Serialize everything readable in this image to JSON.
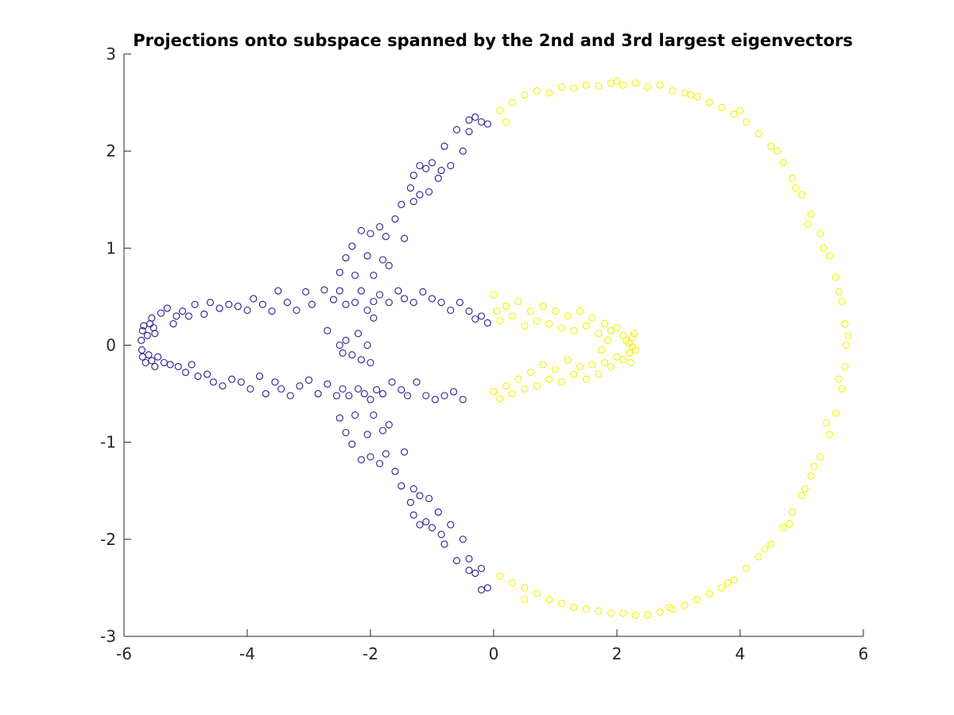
{
  "chart_data": {
    "type": "scatter",
    "title": "Projections onto subspace spanned by the 2nd and 3rd largest eigenvectors",
    "xlabel": "",
    "ylabel": "",
    "xlim": [
      -6,
      6
    ],
    "ylim": [
      -3,
      3
    ],
    "xticks": [
      -6,
      -4,
      -2,
      0,
      2,
      4,
      6
    ],
    "yticks": [
      -3,
      -2,
      -1,
      0,
      1,
      2,
      3
    ],
    "xtick_labels": [
      "-6",
      "-4",
      "-2",
      "0",
      "2",
      "4",
      "6"
    ],
    "ytick_labels": [
      "-3",
      "-2",
      "-1",
      "0",
      "1",
      "2",
      "3"
    ],
    "grid": false,
    "marker": "open-circle",
    "series": [
      {
        "color": "#2b1d8c",
        "points": [
          [
            -5.7,
            0.15
          ],
          [
            -5.72,
            0.05
          ],
          [
            -5.71,
            -0.05
          ],
          [
            -5.7,
            -0.12
          ],
          [
            -5.68,
            0.2
          ],
          [
            -5.65,
            -0.18
          ],
          [
            -5.62,
            0.1
          ],
          [
            -5.6,
            -0.1
          ],
          [
            -5.58,
            0.22
          ],
          [
            -5.55,
            0.28
          ],
          [
            -5.55,
            -0.16
          ],
          [
            -5.52,
            0.18
          ],
          [
            -5.5,
            -0.22
          ],
          [
            -5.5,
            0.12
          ],
          [
            -5.45,
            -0.12
          ],
          [
            -5.4,
            0.33
          ],
          [
            -5.35,
            -0.18
          ],
          [
            -5.3,
            0.38
          ],
          [
            -5.25,
            -0.2
          ],
          [
            -5.2,
            0.22
          ],
          [
            -5.15,
            0.3
          ],
          [
            -5.12,
            -0.22
          ],
          [
            -5.05,
            0.35
          ],
          [
            -5.0,
            -0.28
          ],
          [
            -4.95,
            0.3
          ],
          [
            -4.9,
            -0.2
          ],
          [
            -4.85,
            0.42
          ],
          [
            -4.8,
            -0.32
          ],
          [
            -4.7,
            0.32
          ],
          [
            -4.65,
            -0.3
          ],
          [
            -4.6,
            0.44
          ],
          [
            -4.55,
            -0.38
          ],
          [
            -4.45,
            0.38
          ],
          [
            -4.4,
            -0.42
          ],
          [
            -4.3,
            0.42
          ],
          [
            -4.25,
            -0.35
          ],
          [
            -4.15,
            0.4
          ],
          [
            -4.1,
            -0.38
          ],
          [
            -4.0,
            0.36
          ],
          [
            -3.95,
            -0.45
          ],
          [
            -3.9,
            0.48
          ],
          [
            -3.8,
            -0.32
          ],
          [
            -3.75,
            0.42
          ],
          [
            -3.7,
            -0.5
          ],
          [
            -3.6,
            0.35
          ],
          [
            -3.55,
            -0.38
          ],
          [
            -3.5,
            0.56
          ],
          [
            -3.45,
            -0.45
          ],
          [
            -3.35,
            0.44
          ],
          [
            -3.3,
            -0.52
          ],
          [
            -3.2,
            0.36
          ],
          [
            -3.15,
            -0.42
          ],
          [
            -3.05,
            0.55
          ],
          [
            -3.0,
            -0.36
          ],
          [
            -2.95,
            0.42
          ],
          [
            -2.85,
            -0.5
          ],
          [
            -2.75,
            0.57
          ],
          [
            -2.7,
            -0.4
          ],
          [
            -2.6,
            0.47
          ],
          [
            -2.55,
            -0.52
          ],
          [
            -2.5,
            0.56
          ],
          [
            -2.45,
            -0.45
          ],
          [
            -2.4,
            0.42
          ],
          [
            -2.35,
            -0.52
          ],
          [
            -2.25,
            0.44
          ],
          [
            -2.2,
            -0.45
          ],
          [
            -2.15,
            0.56
          ],
          [
            -2.1,
            -0.5
          ],
          [
            -2.05,
            0.36
          ],
          [
            -2.0,
            -0.56
          ],
          [
            -1.95,
            0.45
          ],
          [
            -1.9,
            -0.46
          ],
          [
            -1.85,
            0.52
          ],
          [
            -1.8,
            -0.5
          ],
          [
            -1.7,
            0.44
          ],
          [
            -1.65,
            -0.38
          ],
          [
            -1.55,
            0.56
          ],
          [
            -1.5,
            -0.46
          ],
          [
            -1.45,
            0.48
          ],
          [
            -1.4,
            -0.52
          ],
          [
            -1.3,
            0.44
          ],
          [
            -1.25,
            -0.38
          ],
          [
            -1.15,
            0.55
          ],
          [
            -1.1,
            -0.52
          ],
          [
            -1.0,
            0.48
          ],
          [
            -0.95,
            -0.56
          ],
          [
            -0.85,
            0.44
          ],
          [
            -0.8,
            -0.52
          ],
          [
            -0.7,
            0.36
          ],
          [
            -0.65,
            -0.48
          ],
          [
            -0.55,
            0.44
          ],
          [
            -0.5,
            -0.56
          ],
          [
            -0.4,
            0.35
          ],
          [
            -0.3,
            0.27
          ],
          [
            -0.2,
            0.3
          ],
          [
            -0.1,
            0.23
          ],
          [
            -2.7,
            0.15
          ],
          [
            -2.5,
            0.0
          ],
          [
            -2.45,
            -0.08
          ],
          [
            -2.4,
            0.05
          ],
          [
            -2.3,
            -0.1
          ],
          [
            -2.2,
            0.12
          ],
          [
            -2.15,
            -0.15
          ],
          [
            -2.05,
            0.0
          ],
          [
            -2.0,
            -0.18
          ],
          [
            -1.95,
            0.28
          ],
          [
            -2.5,
            0.75
          ],
          [
            -2.4,
            0.9
          ],
          [
            -2.3,
            1.02
          ],
          [
            -2.25,
            0.72
          ],
          [
            -2.15,
            1.18
          ],
          [
            -2.05,
            0.92
          ],
          [
            -2.0,
            1.15
          ],
          [
            -1.95,
            0.72
          ],
          [
            -1.85,
            1.22
          ],
          [
            -1.8,
            0.88
          ],
          [
            -1.75,
            1.12
          ],
          [
            -1.7,
            0.82
          ],
          [
            -1.6,
            1.3
          ],
          [
            -1.5,
            1.45
          ],
          [
            -1.45,
            1.1
          ],
          [
            -1.35,
            1.62
          ],
          [
            -1.3,
            1.48
          ],
          [
            -1.2,
            1.55
          ],
          [
            -1.1,
            1.82
          ],
          [
            -1.05,
            1.58
          ],
          [
            -1.0,
            1.88
          ],
          [
            -0.9,
            1.72
          ],
          [
            -0.8,
            2.05
          ],
          [
            -0.7,
            1.85
          ],
          [
            -0.6,
            2.22
          ],
          [
            -0.5,
            2.0
          ],
          [
            -0.4,
            2.2
          ],
          [
            -0.3,
            2.35
          ],
          [
            -0.2,
            2.3
          ],
          [
            -0.1,
            2.28
          ],
          [
            -1.3,
            1.75
          ],
          [
            -1.2,
            1.85
          ],
          [
            -0.85,
            1.8
          ],
          [
            -0.4,
            2.32
          ],
          [
            -2.5,
            -0.75
          ],
          [
            -2.4,
            -0.9
          ],
          [
            -2.3,
            -1.02
          ],
          [
            -2.25,
            -0.72
          ],
          [
            -2.15,
            -1.18
          ],
          [
            -2.05,
            -0.92
          ],
          [
            -2.0,
            -1.15
          ],
          [
            -1.95,
            -0.72
          ],
          [
            -1.85,
            -1.22
          ],
          [
            -1.8,
            -0.88
          ],
          [
            -1.75,
            -1.12
          ],
          [
            -1.7,
            -0.82
          ],
          [
            -1.6,
            -1.3
          ],
          [
            -1.5,
            -1.45
          ],
          [
            -1.45,
            -1.1
          ],
          [
            -1.35,
            -1.62
          ],
          [
            -1.3,
            -1.48
          ],
          [
            -1.2,
            -1.55
          ],
          [
            -1.1,
            -1.82
          ],
          [
            -1.05,
            -1.58
          ],
          [
            -1.0,
            -1.88
          ],
          [
            -0.9,
            -1.72
          ],
          [
            -0.8,
            -2.05
          ],
          [
            -0.7,
            -1.85
          ],
          [
            -0.6,
            -2.22
          ],
          [
            -0.5,
            -2.0
          ],
          [
            -0.4,
            -2.2
          ],
          [
            -0.3,
            -2.35
          ],
          [
            -0.2,
            -2.3
          ],
          [
            -0.1,
            -2.5
          ],
          [
            -1.3,
            -1.75
          ],
          [
            -1.2,
            -1.85
          ],
          [
            -0.85,
            -1.95
          ],
          [
            -0.4,
            -2.32
          ],
          [
            -0.2,
            -2.52
          ]
        ]
      },
      {
        "color": "#f2f200",
        "points": [
          [
            0.0,
            0.52
          ],
          [
            0.05,
            0.35
          ],
          [
            0.1,
            0.25
          ],
          [
            0.2,
            0.4
          ],
          [
            0.3,
            0.3
          ],
          [
            0.4,
            0.45
          ],
          [
            0.5,
            0.2
          ],
          [
            0.6,
            0.35
          ],
          [
            0.7,
            0.25
          ],
          [
            0.8,
            0.4
          ],
          [
            0.9,
            0.22
          ],
          [
            1.0,
            0.35
          ],
          [
            1.1,
            0.18
          ],
          [
            1.2,
            0.3
          ],
          [
            1.3,
            0.15
          ],
          [
            1.4,
            0.35
          ],
          [
            1.5,
            0.2
          ],
          [
            1.6,
            0.28
          ],
          [
            1.7,
            0.12
          ],
          [
            1.8,
            0.22
          ],
          [
            1.9,
            0.15
          ],
          [
            2.0,
            0.18
          ],
          [
            2.1,
            0.1
          ],
          [
            2.15,
            0.05
          ],
          [
            2.2,
            0.02
          ],
          [
            2.25,
            -0.02
          ],
          [
            2.2,
            -0.08
          ],
          [
            2.1,
            -0.15
          ],
          [
            2.0,
            -0.12
          ],
          [
            1.9,
            -0.22
          ],
          [
            1.8,
            -0.18
          ],
          [
            1.7,
            -0.3
          ],
          [
            1.6,
            -0.2
          ],
          [
            1.5,
            -0.35
          ],
          [
            1.4,
            -0.22
          ],
          [
            1.3,
            -0.3
          ],
          [
            1.2,
            -0.15
          ],
          [
            1.1,
            -0.38
          ],
          [
            1.0,
            -0.25
          ],
          [
            0.9,
            -0.35
          ],
          [
            0.8,
            -0.2
          ],
          [
            0.7,
            -0.42
          ],
          [
            0.6,
            -0.28
          ],
          [
            0.5,
            -0.45
          ],
          [
            0.4,
            -0.35
          ],
          [
            0.3,
            -0.5
          ],
          [
            0.2,
            -0.42
          ],
          [
            0.1,
            -0.55
          ],
          [
            0.0,
            -0.48
          ],
          [
            2.25,
            0.08
          ],
          [
            2.3,
            -0.05
          ],
          [
            2.28,
            0.12
          ],
          [
            2.22,
            -0.18
          ],
          [
            1.85,
            0.05
          ],
          [
            1.75,
            -0.05
          ],
          [
            0.1,
            2.42
          ],
          [
            0.3,
            2.5
          ],
          [
            0.5,
            2.58
          ],
          [
            0.7,
            2.62
          ],
          [
            0.9,
            2.6
          ],
          [
            1.1,
            2.66
          ],
          [
            1.3,
            2.65
          ],
          [
            1.5,
            2.68
          ],
          [
            1.7,
            2.67
          ],
          [
            1.9,
            2.7
          ],
          [
            2.1,
            2.68
          ],
          [
            2.3,
            2.7
          ],
          [
            2.5,
            2.66
          ],
          [
            2.7,
            2.68
          ],
          [
            2.9,
            2.62
          ],
          [
            3.1,
            2.6
          ],
          [
            3.3,
            2.56
          ],
          [
            3.5,
            2.5
          ],
          [
            3.7,
            2.45
          ],
          [
            3.9,
            2.38
          ],
          [
            4.1,
            2.3
          ],
          [
            4.3,
            2.18
          ],
          [
            4.5,
            2.05
          ],
          [
            4.7,
            1.88
          ],
          [
            4.85,
            1.72
          ],
          [
            5.0,
            1.55
          ],
          [
            5.15,
            1.35
          ],
          [
            5.3,
            1.15
          ],
          [
            5.45,
            0.92
          ],
          [
            5.55,
            0.7
          ],
          [
            5.65,
            0.45
          ],
          [
            5.7,
            0.22
          ],
          [
            5.72,
            0.0
          ],
          [
            5.7,
            -0.22
          ],
          [
            5.65,
            -0.45
          ],
          [
            5.55,
            -0.7
          ],
          [
            5.45,
            -0.92
          ],
          [
            5.3,
            -1.15
          ],
          [
            5.15,
            -1.35
          ],
          [
            5.0,
            -1.55
          ],
          [
            4.85,
            -1.72
          ],
          [
            4.7,
            -1.88
          ],
          [
            4.5,
            -2.05
          ],
          [
            4.3,
            -2.18
          ],
          [
            4.1,
            -2.3
          ],
          [
            3.9,
            -2.42
          ],
          [
            3.7,
            -2.5
          ],
          [
            3.5,
            -2.56
          ],
          [
            3.3,
            -2.62
          ],
          [
            3.1,
            -2.68
          ],
          [
            2.9,
            -2.72
          ],
          [
            2.7,
            -2.75
          ],
          [
            2.5,
            -2.78
          ],
          [
            2.3,
            -2.78
          ],
          [
            2.1,
            -2.76
          ],
          [
            1.9,
            -2.76
          ],
          [
            1.7,
            -2.74
          ],
          [
            1.5,
            -2.72
          ],
          [
            1.3,
            -2.7
          ],
          [
            1.1,
            -2.66
          ],
          [
            0.9,
            -2.62
          ],
          [
            0.7,
            -2.56
          ],
          [
            0.5,
            -2.5
          ],
          [
            0.3,
            -2.45
          ],
          [
            0.1,
            -2.38
          ],
          [
            4.9,
            1.62
          ],
          [
            5.1,
            1.25
          ],
          [
            5.35,
            1.0
          ],
          [
            5.6,
            0.55
          ],
          [
            5.75,
            0.1
          ],
          [
            5.6,
            -0.35
          ],
          [
            5.4,
            -0.8
          ],
          [
            5.2,
            -1.25
          ],
          [
            5.05,
            -1.48
          ],
          [
            4.8,
            -1.84
          ],
          [
            4.4,
            -2.1
          ],
          [
            3.8,
            -2.45
          ],
          [
            2.85,
            -2.7
          ],
          [
            0.5,
            -2.62
          ],
          [
            2.0,
            2.72
          ],
          [
            3.2,
            2.58
          ],
          [
            4.0,
            2.42
          ],
          [
            4.6,
            2.0
          ],
          [
            0.2,
            2.3
          ]
        ]
      }
    ]
  }
}
